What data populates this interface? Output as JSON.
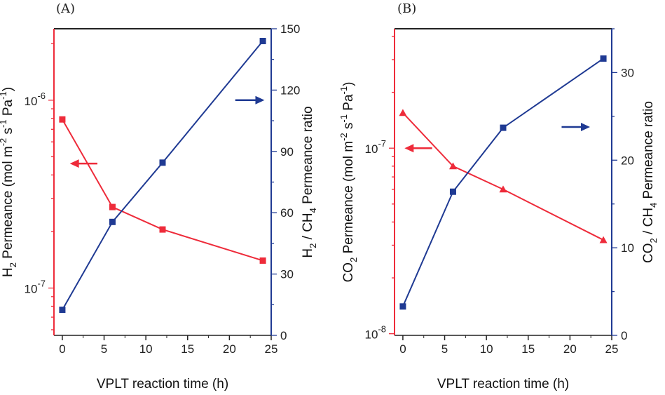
{
  "colors": {
    "left_series": "#ee2b3a",
    "right_series": "#1f3a93",
    "frame": "#222222"
  },
  "chart_data": [
    {
      "type": "line",
      "panel_label": "(A)",
      "xlabel": "VPLT reaction time (h)",
      "xlim": [
        -1,
        25
      ],
      "xticks": [
        0,
        5,
        10,
        15,
        20,
        25
      ],
      "ylabel_left": {
        "base": "H",
        "sub1": "2",
        "mid": " Permeance (mol m",
        "sup1": "-2",
        "mid2": " s",
        "sup2": "-1",
        "mid3": " Pa",
        "sup3": "-1",
        "end": ")"
      },
      "ylabel_right": {
        "base": "H",
        "sub1": "2",
        "mid": " / CH",
        "sub2": "4",
        "end": " Permeance ratio"
      },
      "y_left_scale": "log",
      "y_left_lim": [
        5.6e-08,
        2.4e-06
      ],
      "y_left_ticks": [
        {
          "value": 1e-07,
          "base": "10",
          "exp": "-7"
        },
        {
          "value": 1e-06,
          "base": "10",
          "exp": "-6"
        }
      ],
      "y_right_lim": [
        0,
        150
      ],
      "y_right_ticks": [
        0,
        30,
        60,
        90,
        120,
        150
      ],
      "series": [
        {
          "axis": "left",
          "marker": "square",
          "x": [
            0,
            6,
            12,
            24
          ],
          "y": [
            7.9e-07,
            2.7e-07,
            2.05e-07,
            1.4e-07
          ]
        },
        {
          "axis": "right",
          "marker": "square",
          "x": [
            0,
            6,
            12,
            24
          ],
          "y": [
            12.5,
            55.5,
            84.5,
            144
          ]
        }
      ],
      "arrows": [
        {
          "direction": "left",
          "axis": "left",
          "x_from": 4.2,
          "x_to": 0.9,
          "y": 4.6e-07
        },
        {
          "direction": "right",
          "axis": "left",
          "x_from": 20.7,
          "x_to": 24.2,
          "y": 1e-06
        }
      ]
    },
    {
      "type": "line",
      "panel_label": "(B)",
      "xlabel": "VPLT reaction time (h)",
      "xlim": [
        -1,
        25
      ],
      "xticks": [
        0,
        5,
        10,
        15,
        20,
        25
      ],
      "ylabel_left": {
        "base": "CO",
        "sub1": "2",
        "mid": " Permeance (mol m",
        "sup1": "-2",
        "mid2": " s",
        "sup2": "-1",
        "mid3": " Pa",
        "sup3": "-1",
        "end": ")"
      },
      "ylabel_right": {
        "base": "CO",
        "sub1": "2",
        "mid": " / CH",
        "sub2": "4",
        "end": " Permeance ratio"
      },
      "y_left_scale": "log",
      "y_left_lim": [
        9.8e-09,
        4.4e-07
      ],
      "y_left_ticks": [
        {
          "value": 1e-08,
          "base": "10",
          "exp": "-8"
        },
        {
          "value": 1e-07,
          "base": "10",
          "exp": "-7"
        }
      ],
      "y_right_lim": [
        0,
        35
      ],
      "y_right_ticks": [
        0,
        10,
        20,
        30
      ],
      "series": [
        {
          "axis": "left",
          "marker": "triangle",
          "x": [
            0,
            6,
            12,
            24
          ],
          "y": [
            1.55e-07,
            8e-08,
            6e-08,
            3.2e-08
          ]
        },
        {
          "axis": "right",
          "marker": "square",
          "x": [
            0,
            6,
            12,
            24
          ],
          "y": [
            3.3,
            16.4,
            23.7,
            31.6
          ]
        }
      ],
      "arrows": [
        {
          "direction": "left",
          "axis": "left",
          "x_from": 3.5,
          "x_to": 0.2,
          "y": 1e-07
        },
        {
          "direction": "right",
          "axis": "left",
          "x_from": 19.0,
          "x_to": 22.4,
          "y": 1.3e-07
        }
      ]
    }
  ]
}
